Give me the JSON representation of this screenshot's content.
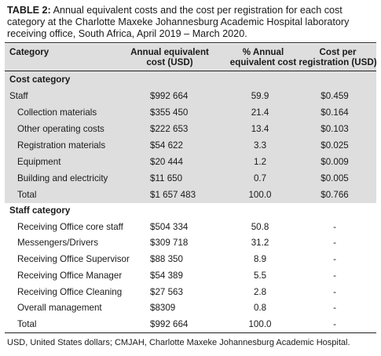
{
  "caption": {
    "label": "TABLE 2:",
    "text": "Annual equivalent costs and the cost per registration for each cost category at the Charlotte Maxeke Johannesburg Academic Hospital laboratory receiving office, South Africa, April 2019 – March 2020."
  },
  "columns": {
    "category": "Category",
    "annual_line1": "Annual equivalent",
    "annual_line2": "cost (USD)",
    "pct_line1": "% Annual",
    "pct_line2": "equivalent cost",
    "per_reg_line1": "Cost per",
    "per_reg_line2": "registration (USD)"
  },
  "cost_section": {
    "title": "Cost category",
    "rows": [
      {
        "category": "Staff",
        "annual": "$992 664",
        "pct": "59.9",
        "per_reg": "$0.459"
      },
      {
        "category": "Collection materials",
        "annual": "$355 450",
        "pct": "21.4",
        "per_reg": "$0.164"
      },
      {
        "category": "Other operating costs",
        "annual": "$222 653",
        "pct": "13.4",
        "per_reg": "$0.103"
      },
      {
        "category": "Registration materials",
        "annual": "$54 622",
        "pct": "3.3",
        "per_reg": "$0.025"
      },
      {
        "category": "Equipment",
        "annual": "$20 444",
        "pct": "1.2",
        "per_reg": "$0.009"
      },
      {
        "category": "Building and electricity",
        "annual": "$11 650",
        "pct": "0.7",
        "per_reg": "$0.005"
      },
      {
        "category": "Total",
        "annual": "$1 657 483",
        "pct": "100.0",
        "per_reg": "$0.766"
      }
    ]
  },
  "staff_section": {
    "title": "Staff category",
    "rows": [
      {
        "category": "Receiving Office core staff",
        "annual": "$504 334",
        "pct": "50.8",
        "per_reg": "-"
      },
      {
        "category": "Messengers/Drivers",
        "annual": "$309 718",
        "pct": "31.2",
        "per_reg": "-"
      },
      {
        "category": "Receiving Office Supervisor",
        "annual": "$88 350",
        "pct": "8.9",
        "per_reg": "-"
      },
      {
        "category": "Receiving Office Manager",
        "annual": "$54 389",
        "pct": "5.5",
        "per_reg": "-"
      },
      {
        "category": "Receiving Office Cleaning",
        "annual": "$27 563",
        "pct": "2.8",
        "per_reg": "-"
      },
      {
        "category": "Overall management",
        "annual": "$8309",
        "pct": "0.8",
        "per_reg": "-"
      },
      {
        "category": "Total",
        "annual": "$992 664",
        "pct": "100.0",
        "per_reg": "-"
      }
    ]
  },
  "footnote": "USD, United States dollars; CMJAH, Charlotte Maxeke Johannesburg Academic Hospital."
}
